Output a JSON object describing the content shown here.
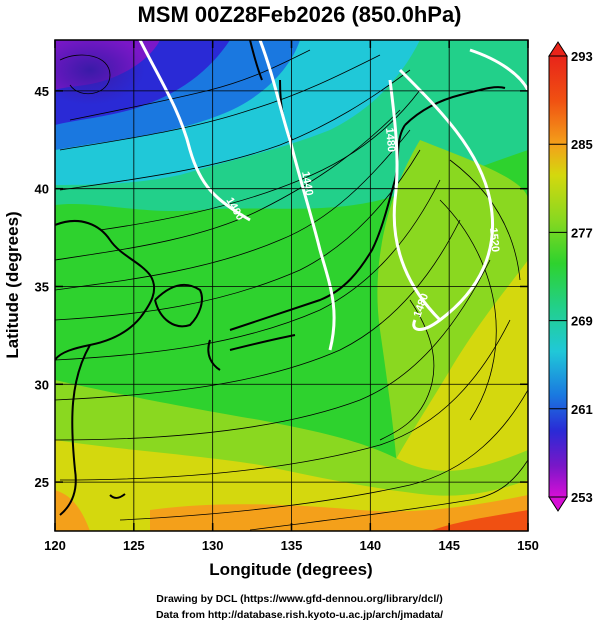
{
  "title": "MSM 00Z28Feb2026 (850.0hPa)",
  "axes": {
    "xlabel": "Longitude (degrees)",
    "ylabel": "Latitude  (degrees)",
    "xlim": [
      120,
      150
    ],
    "ylim": [
      22.5,
      47.6
    ],
    "xticks": [
      "120",
      "125",
      "130",
      "135",
      "140",
      "145",
      "150"
    ],
    "yticks": [
      "25",
      "30",
      "35",
      "40",
      "45"
    ]
  },
  "colorbar": {
    "min": 253,
    "max": 293,
    "tick_labels": [
      "293",
      "285",
      "277",
      "269",
      "261",
      "253"
    ],
    "colors": [
      "#d60fd6",
      "#7a17c8",
      "#2a2ad6",
      "#1a78e0",
      "#20c8d8",
      "#22d08a",
      "#2ed22e",
      "#8ad820",
      "#d4d80e",
      "#f4a01a",
      "#f05012",
      "#e8241a"
    ]
  },
  "contours": {
    "labels": [
      "1400",
      "1440",
      "1480",
      "1480",
      "1520"
    ]
  },
  "credits": {
    "line1": "Drawing by DCL (https://www.gfd-dennou.org/library/dcl/)",
    "line2": "Data from http://database.rish.kyoto-u.ac.jp/arch/jmadata/"
  }
}
